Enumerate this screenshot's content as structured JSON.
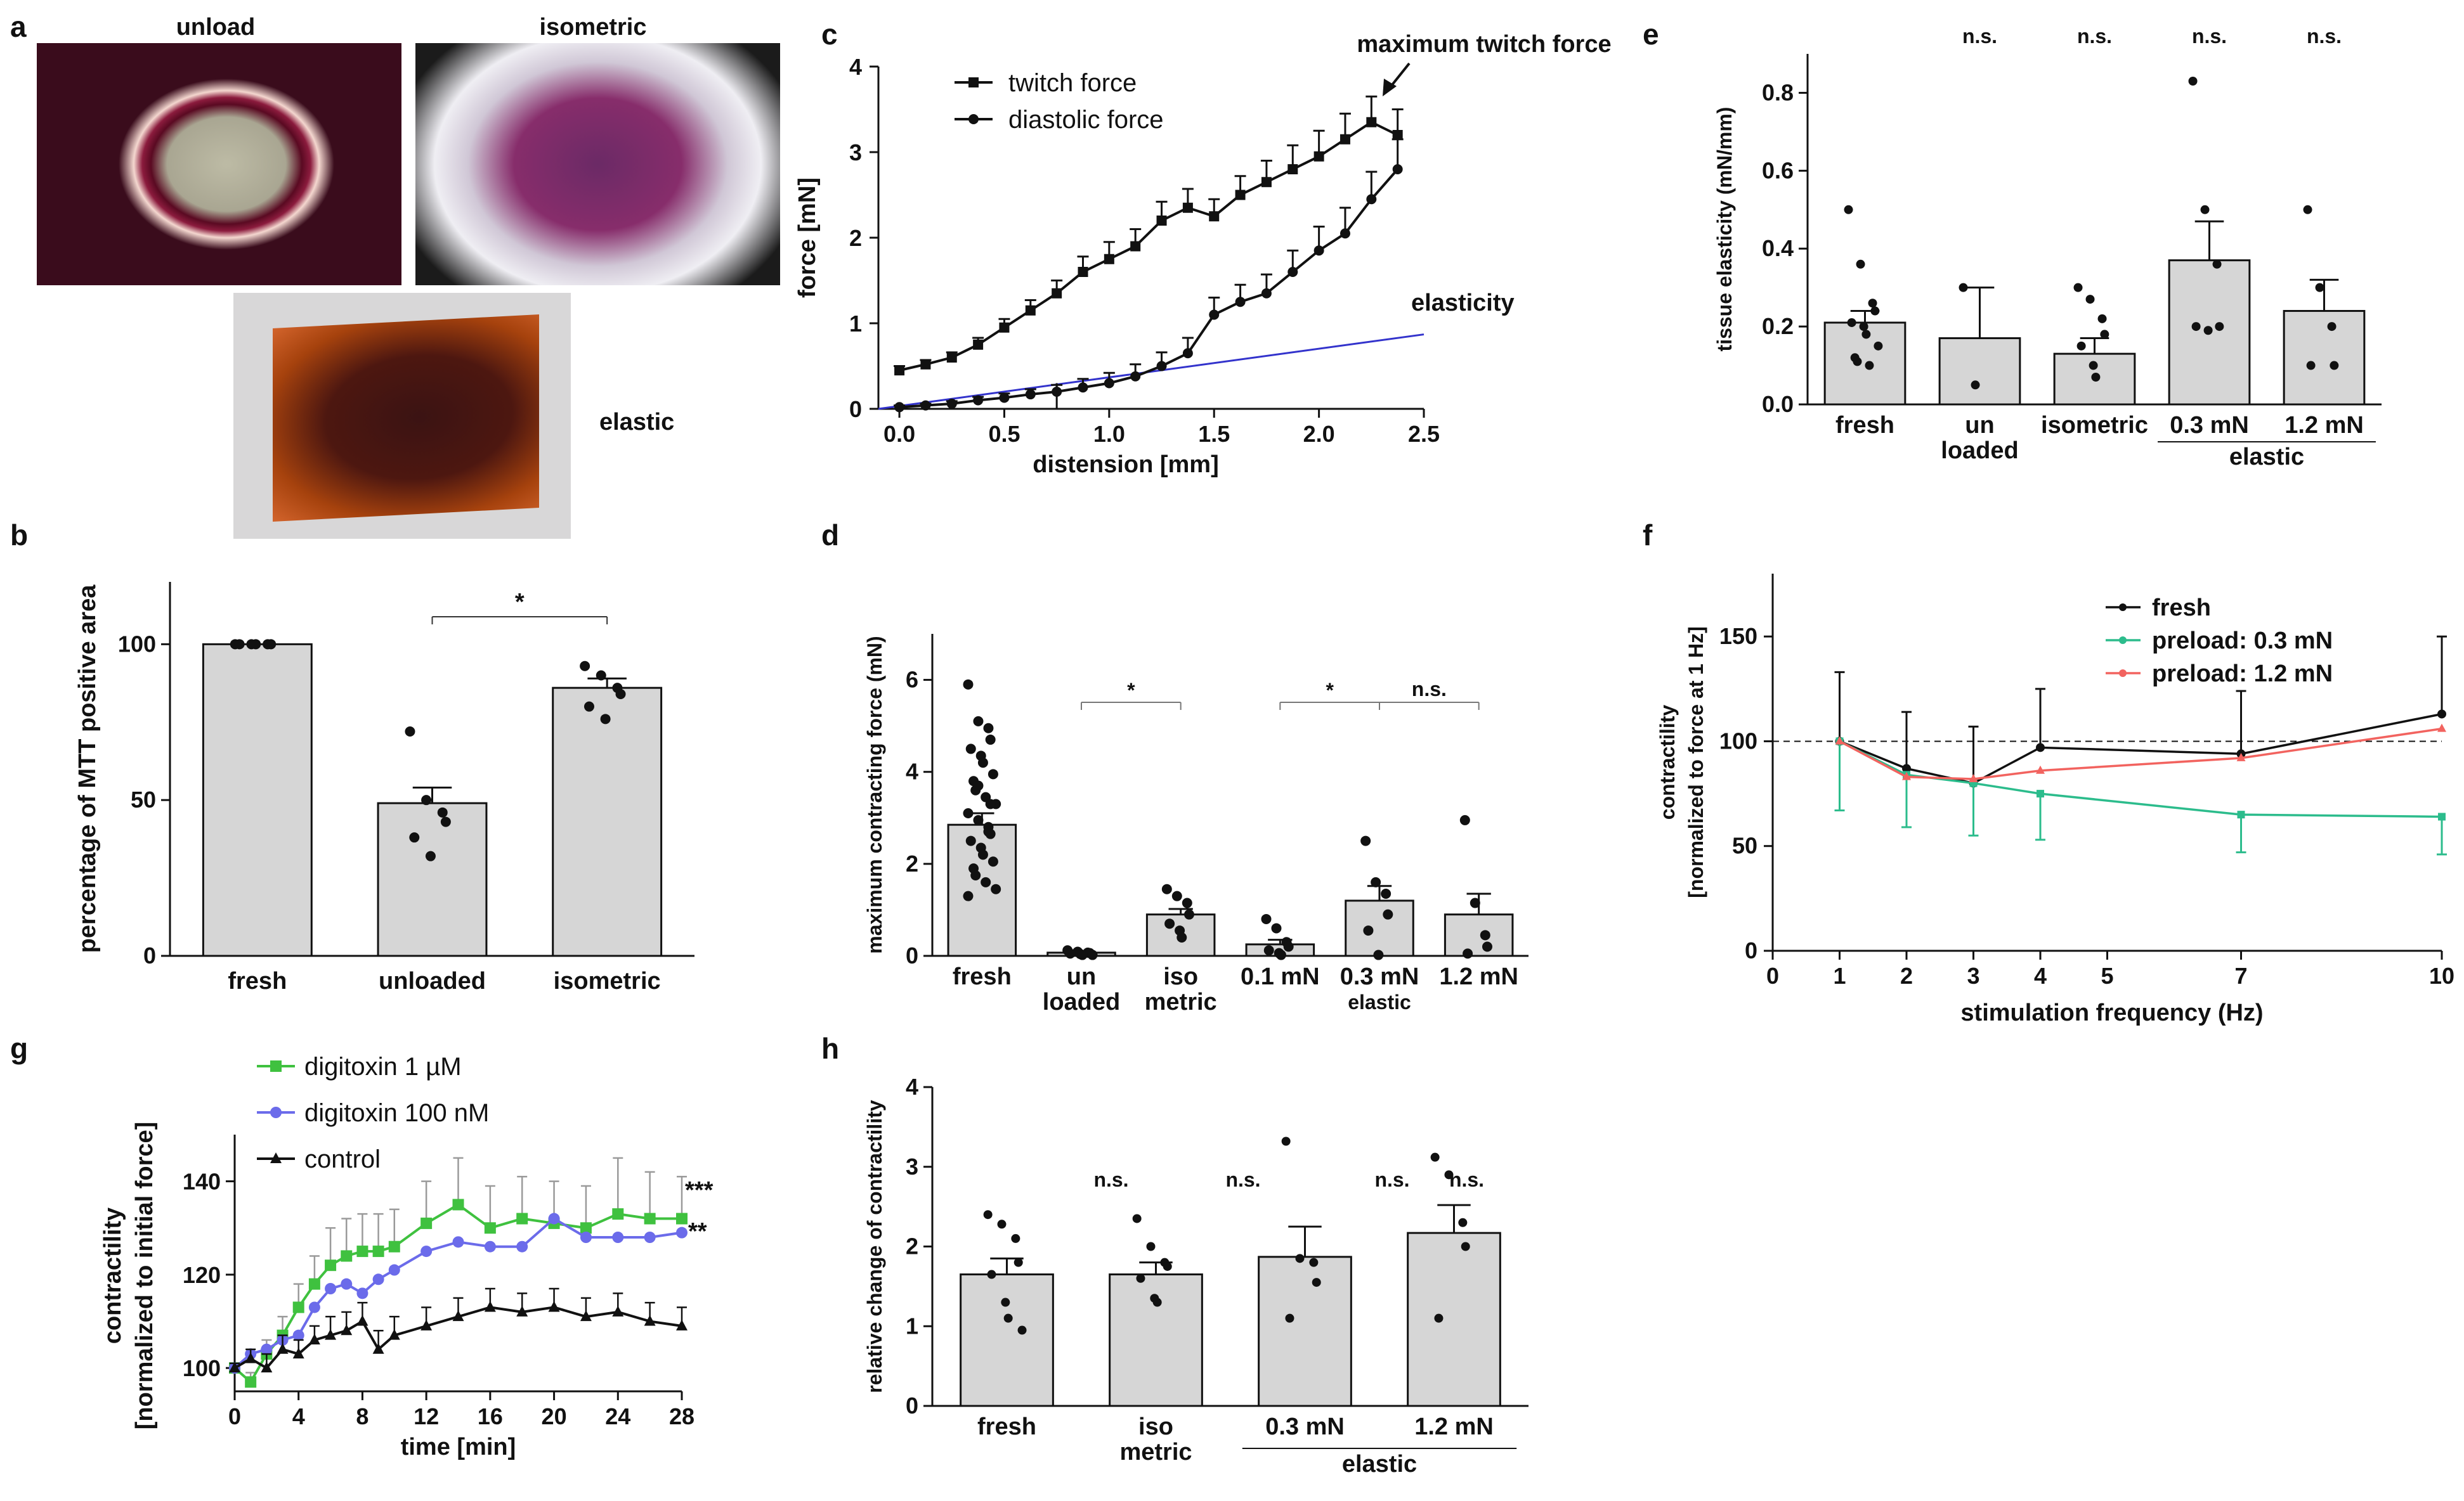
{
  "panels": {
    "a": "a",
    "b": "b",
    "c": "c",
    "d": "d",
    "e": "e",
    "f": "f",
    "g": "g",
    "h": "h"
  },
  "photos": {
    "unload": "unload",
    "isometric": "isometric",
    "elastic": "elastic"
  },
  "chart_data": [
    {
      "id": "b",
      "type": "bar",
      "categories": [
        "fresh",
        "unloaded",
        "isometric"
      ],
      "values": [
        100,
        49,
        86
      ],
      "sem": [
        0,
        5,
        3
      ],
      "points": [
        [
          100,
          100,
          100,
          100,
          100,
          100
        ],
        [
          72,
          50,
          46,
          43,
          38,
          32
        ],
        [
          93,
          90,
          86,
          84,
          80,
          76
        ]
      ],
      "ylabel": "percentage of MTT positive area",
      "ylim": [
        0,
        120
      ],
      "yticks": [
        0,
        50,
        100
      ],
      "sig": "*"
    },
    {
      "id": "c",
      "type": "line",
      "xlabel": "distension [mm]",
      "ylabel": "force [mN]",
      "xlim": [
        -0.1,
        2.5
      ],
      "ylim": [
        0,
        4
      ],
      "xticks": [
        "0.0",
        "0.5",
        "1.0",
        "1.5",
        "2.0",
        "2.5"
      ],
      "yticks": [
        "0",
        "1",
        "2",
        "3",
        "4"
      ],
      "series": [
        {
          "name": "twitch force",
          "x": [
            0,
            0.125,
            0.25,
            0.375,
            0.5,
            0.625,
            0.75,
            0.875,
            1.0,
            1.125,
            1.25,
            1.375,
            1.5,
            1.625,
            1.75,
            1.875,
            2.0,
            2.125,
            2.25,
            2.375
          ],
          "y": [
            0.45,
            0.52,
            0.6,
            0.75,
            0.95,
            1.15,
            1.35,
            1.6,
            1.75,
            1.9,
            2.2,
            2.35,
            2.25,
            2.5,
            2.65,
            2.8,
            2.95,
            3.15,
            3.35,
            3.2
          ],
          "err": [
            0.05,
            0.05,
            0.06,
            0.08,
            0.1,
            0.12,
            0.15,
            0.18,
            0.2,
            0.2,
            0.22,
            0.22,
            0.2,
            0.22,
            0.25,
            0.28,
            0.3,
            0.3,
            0.3,
            0.3
          ]
        },
        {
          "name": "diastolic force",
          "x": [
            0,
            0.125,
            0.25,
            0.375,
            0.5,
            0.625,
            0.75,
            0.875,
            1.0,
            1.125,
            1.25,
            1.375,
            1.5,
            1.625,
            1.75,
            1.875,
            2.0,
            2.125,
            2.25,
            2.375
          ],
          "y": [
            0.02,
            0.04,
            0.06,
            0.1,
            0.13,
            0.17,
            0.2,
            0.25,
            0.3,
            0.38,
            0.5,
            0.65,
            1.1,
            1.25,
            1.35,
            1.6,
            1.85,
            2.05,
            2.45,
            2.8
          ],
          "err": [
            0.02,
            0.02,
            0.03,
            0.04,
            0.05,
            0.06,
            0.08,
            0.1,
            0.12,
            0.14,
            0.16,
            0.18,
            0.2,
            0.2,
            0.22,
            0.25,
            0.28,
            0.3,
            0.32,
            0.35
          ]
        }
      ],
      "elasticity_line": {
        "label": "elasticity",
        "x": [
          -0.1,
          2.5
        ],
        "y": [
          0,
          0.87
        ]
      },
      "annotation": "maximum twitch force",
      "marker_x": 0.75
    },
    {
      "id": "d",
      "type": "bar",
      "categories": [
        "fresh",
        "un loaded",
        "iso metric",
        "0.1 mN",
        "0.3 mN",
        "1.2 mN"
      ],
      "group_label": "elastic",
      "values": [
        2.85,
        0.07,
        0.9,
        0.25,
        1.2,
        0.9
      ],
      "sem": [
        0.25,
        0.03,
        0.12,
        0.1,
        0.32,
        0.45
      ],
      "points": [
        [
          5.9,
          5.1,
          4.95,
          4.7,
          4.5,
          4.35,
          4.2,
          3.95,
          3.8,
          3.6,
          3.45,
          3.3,
          3.1,
          2.95,
          2.8,
          2.65,
          2.5,
          2.35,
          2.2,
          2.05,
          1.9,
          1.75,
          1.6,
          1.45,
          1.3,
          3.7,
          2.7,
          3.3
        ],
        [
          0.12,
          0.09,
          0.07,
          0.06,
          0.05,
          0.04,
          0.02,
          0.02
        ],
        [
          1.45,
          1.3,
          1.15,
          0.9,
          0.7,
          0.55,
          0.4
        ],
        [
          0.8,
          0.6,
          0.3,
          0.2,
          0.12,
          0.06,
          0.02
        ],
        [
          2.5,
          1.6,
          1.35,
          0.9,
          0.55,
          0.02
        ],
        [
          2.95,
          1.15,
          0.45,
          0.2,
          0.05
        ]
      ],
      "ylabel": "maximum contracting force (mN)",
      "ylim": [
        0,
        7
      ],
      "yticks": [
        0,
        2,
        4,
        6
      ],
      "sig": [
        "*",
        "*",
        "n.s."
      ]
    },
    {
      "id": "e",
      "type": "bar",
      "categories": [
        "fresh",
        "un loaded",
        "isometric",
        "0.3 mN",
        "1.2 mN"
      ],
      "group_label": "elastic",
      "values": [
        0.21,
        0.17,
        0.13,
        0.37,
        0.24
      ],
      "sem": [
        0.03,
        0.13,
        0.04,
        0.1,
        0.08
      ],
      "points": [
        [
          0.5,
          0.36,
          0.26,
          0.24,
          0.21,
          0.2,
          0.18,
          0.15,
          0.12,
          0.11,
          0.1
        ],
        [
          0.3,
          0.05
        ],
        [
          0.3,
          0.27,
          0.22,
          0.18,
          0.15,
          0.1,
          0.07
        ],
        [
          0.83,
          0.5,
          0.36,
          0.2,
          0.2,
          0.19
        ],
        [
          0.5,
          0.3,
          0.2,
          0.1,
          0.1
        ]
      ],
      "ylabel": "tissue elasticity (mN/mm)",
      "ylim": [
        0,
        0.9
      ],
      "yticks": [
        "0.0",
        "0.2",
        "0.4",
        "0.6",
        "0.8"
      ],
      "sig": [
        "n.s.",
        "n.s.",
        "n.s.",
        "n.s."
      ]
    },
    {
      "id": "f",
      "type": "line",
      "xlabel": "stimulation frequency (Hz)",
      "ylabel": "contractility",
      "ylabel2": "[normalized to force at 1 Hz]",
      "xlim": [
        0,
        10
      ],
      "ylim": [
        0,
        180
      ],
      "xticks": [
        0,
        1,
        2,
        3,
        4,
        5,
        7,
        10
      ],
      "yticks": [
        0,
        50,
        100,
        150
      ],
      "series": [
        {
          "name": "fresh",
          "x": [
            1,
            2,
            3,
            4,
            7,
            10
          ],
          "y": [
            100,
            87,
            80,
            97,
            94,
            113
          ],
          "err": [
            33,
            27,
            27,
            28,
            30,
            37
          ],
          "color": "#111111"
        },
        {
          "name": "preload: 0.3 mN",
          "x": [
            1,
            2,
            3,
            4,
            7,
            10
          ],
          "y": [
            100,
            84,
            80,
            75,
            65,
            64
          ],
          "err": [
            33,
            25,
            25,
            22,
            18,
            18
          ],
          "color": "#2cbc8c"
        },
        {
          "name": "preload: 1.2 mN",
          "x": [
            1,
            2,
            3,
            4,
            7,
            10
          ],
          "y": [
            100,
            83,
            82,
            86,
            92,
            106
          ],
          "err": [
            0,
            0,
            0,
            0,
            0,
            0
          ],
          "color": "#f2635f"
        }
      ],
      "reference": 100
    },
    {
      "id": "g",
      "type": "line",
      "xlabel": "time [min]",
      "ylabel": "contractility",
      "ylabel2": "[normalized to initial force]",
      "xlim": [
        0,
        28
      ],
      "ylim": [
        95,
        150
      ],
      "xticks": [
        0,
        4,
        8,
        12,
        16,
        20,
        24,
        28
      ],
      "yticks": [
        100,
        120,
        140
      ],
      "series": [
        {
          "name": "digitoxin 1 µM",
          "x": [
            0,
            1,
            2,
            3,
            4,
            5,
            6,
            7,
            8,
            9,
            10,
            12,
            14,
            16,
            18,
            20,
            22,
            24,
            26,
            28
          ],
          "y": [
            100,
            97,
            103,
            107,
            113,
            118,
            122,
            124,
            125,
            125,
            126,
            131,
            135,
            130,
            132,
            131,
            130,
            133,
            132,
            132
          ],
          "err": [
            1,
            2,
            3,
            4,
            5,
            6,
            8,
            8,
            8,
            8,
            8,
            9,
            10,
            9,
            9,
            9,
            9,
            12,
            10,
            9
          ],
          "color": "#3fc13f"
        },
        {
          "name": "digitoxin 100 nM",
          "x": [
            0,
            1,
            2,
            3,
            4,
            5,
            6,
            7,
            8,
            9,
            10,
            12,
            14,
            16,
            18,
            20,
            22,
            24,
            26,
            28
          ],
          "y": [
            100,
            103,
            104,
            106,
            107,
            113,
            117,
            118,
            116,
            119,
            121,
            125,
            127,
            126,
            126,
            132,
            128,
            128,
            128,
            129
          ],
          "err": [
            0,
            0,
            0,
            0,
            0,
            0,
            0,
            0,
            0,
            0,
            0,
            0,
            0,
            0,
            0,
            0,
            0,
            0,
            0,
            0
          ],
          "color": "#6b6bea"
        },
        {
          "name": "control",
          "x": [
            0,
            1,
            2,
            3,
            4,
            5,
            6,
            7,
            8,
            9,
            10,
            12,
            14,
            16,
            18,
            20,
            22,
            24,
            26,
            28
          ],
          "y": [
            100,
            102,
            100,
            104,
            103,
            106,
            107,
            108,
            110,
            104,
            107,
            109,
            111,
            113,
            112,
            113,
            111,
            112,
            110,
            109
          ],
          "err": [
            1,
            2,
            3,
            3,
            3,
            3,
            4,
            4,
            4,
            4,
            4,
            4,
            4,
            4,
            4,
            4,
            4,
            4,
            4,
            4
          ],
          "color": "#111111"
        }
      ],
      "sig": [
        "***",
        "**"
      ]
    },
    {
      "id": "h",
      "type": "bar",
      "categories": [
        "fresh",
        "iso metric",
        "0.3 mN",
        "1.2 mN"
      ],
      "group_label": "elastic",
      "values": [
        1.65,
        1.65,
        1.87,
        2.17
      ],
      "sem": [
        0.2,
        0.15,
        0.38,
        0.35
      ],
      "points": [
        [
          2.4,
          2.28,
          2.1,
          1.8,
          1.65,
          1.3,
          1.1,
          0.95
        ],
        [
          2.35,
          2.0,
          1.8,
          1.75,
          1.6,
          1.35,
          1.3
        ],
        [
          3.32,
          1.85,
          1.8,
          1.55,
          1.1
        ],
        [
          3.12,
          2.9,
          2.3,
          2.0,
          1.1
        ]
      ],
      "ylabel": "relative change of contractility",
      "ylim": [
        0,
        4
      ],
      "yticks": [
        0,
        1,
        2,
        3,
        4
      ],
      "sig": [
        "n.s.",
        "n.s.",
        "n.s.",
        "n.s."
      ]
    }
  ]
}
